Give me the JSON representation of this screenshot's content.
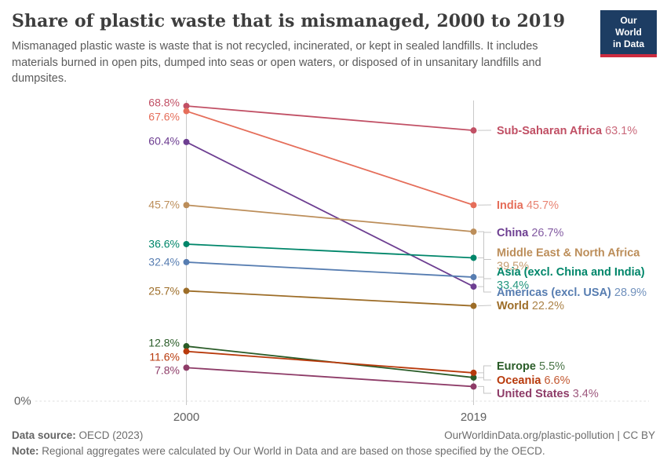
{
  "header": {
    "title": "Share of plastic waste that is mismanaged, 2000 to 2019",
    "subtitle": "Mismanaged plastic waste is waste that is not recycled, incinerated, or kept in sealed landfills. It includes materials burned in open pits, dumped into seas or open waters, or disposed of in unsanitary landfills and dumpsites.",
    "logo": {
      "line1": "Our World",
      "line2": "in Data",
      "bg_color": "#1d3d63",
      "accent_color": "#cd2b3f"
    }
  },
  "chart_data": {
    "type": "line",
    "subtype": "slope",
    "title": "Share of plastic waste that is mismanaged, 2000 to 2019",
    "x": [
      "2000",
      "2019"
    ],
    "ylim": [
      0,
      68.8
    ],
    "y_zero_label": "0%",
    "grid": "dashed zero baseline only",
    "legend_position": "inline labels right of 2019 axis, value labels left of 2000 axis",
    "value_format": "one decimal + %",
    "series": [
      {
        "name": "Sub-Saharan Africa",
        "values": [
          68.8,
          63.1
        ],
        "color": "#c15065"
      },
      {
        "name": "India",
        "values": [
          67.6,
          45.7
        ],
        "color": "#e56e5a"
      },
      {
        "name": "China",
        "values": [
          60.4,
          26.7
        ],
        "color": "#6d3e91"
      },
      {
        "name": "Middle East & North Africa",
        "values": [
          45.7,
          39.5
        ],
        "color": "#bc8e5a"
      },
      {
        "name": "Asia (excl. China and India)",
        "values": [
          36.6,
          33.4
        ],
        "color": "#00866a"
      },
      {
        "name": "Americas (excl. USA)",
        "values": [
          32.4,
          28.9
        ],
        "color": "#577db1"
      },
      {
        "name": "World",
        "values": [
          25.7,
          22.2
        ],
        "color": "#9d6d28"
      },
      {
        "name": "Europe",
        "values": [
          12.8,
          5.5
        ],
        "color": "#2a5c28"
      },
      {
        "name": "Oceania",
        "values": [
          11.6,
          6.6
        ],
        "color": "#b83a0c"
      },
      {
        "name": "United States",
        "values": [
          7.8,
          3.4
        ],
        "color": "#8e3c68"
      }
    ]
  },
  "footer": {
    "source_label": "Data source:",
    "source_value": " OECD (2023)",
    "link": "OurWorldinData.org/plastic-pollution | CC BY",
    "note_label": "Note:",
    "note_value": " Regional aggregates were calculated by Our World in Data and are based on those specified by the OECD."
  }
}
